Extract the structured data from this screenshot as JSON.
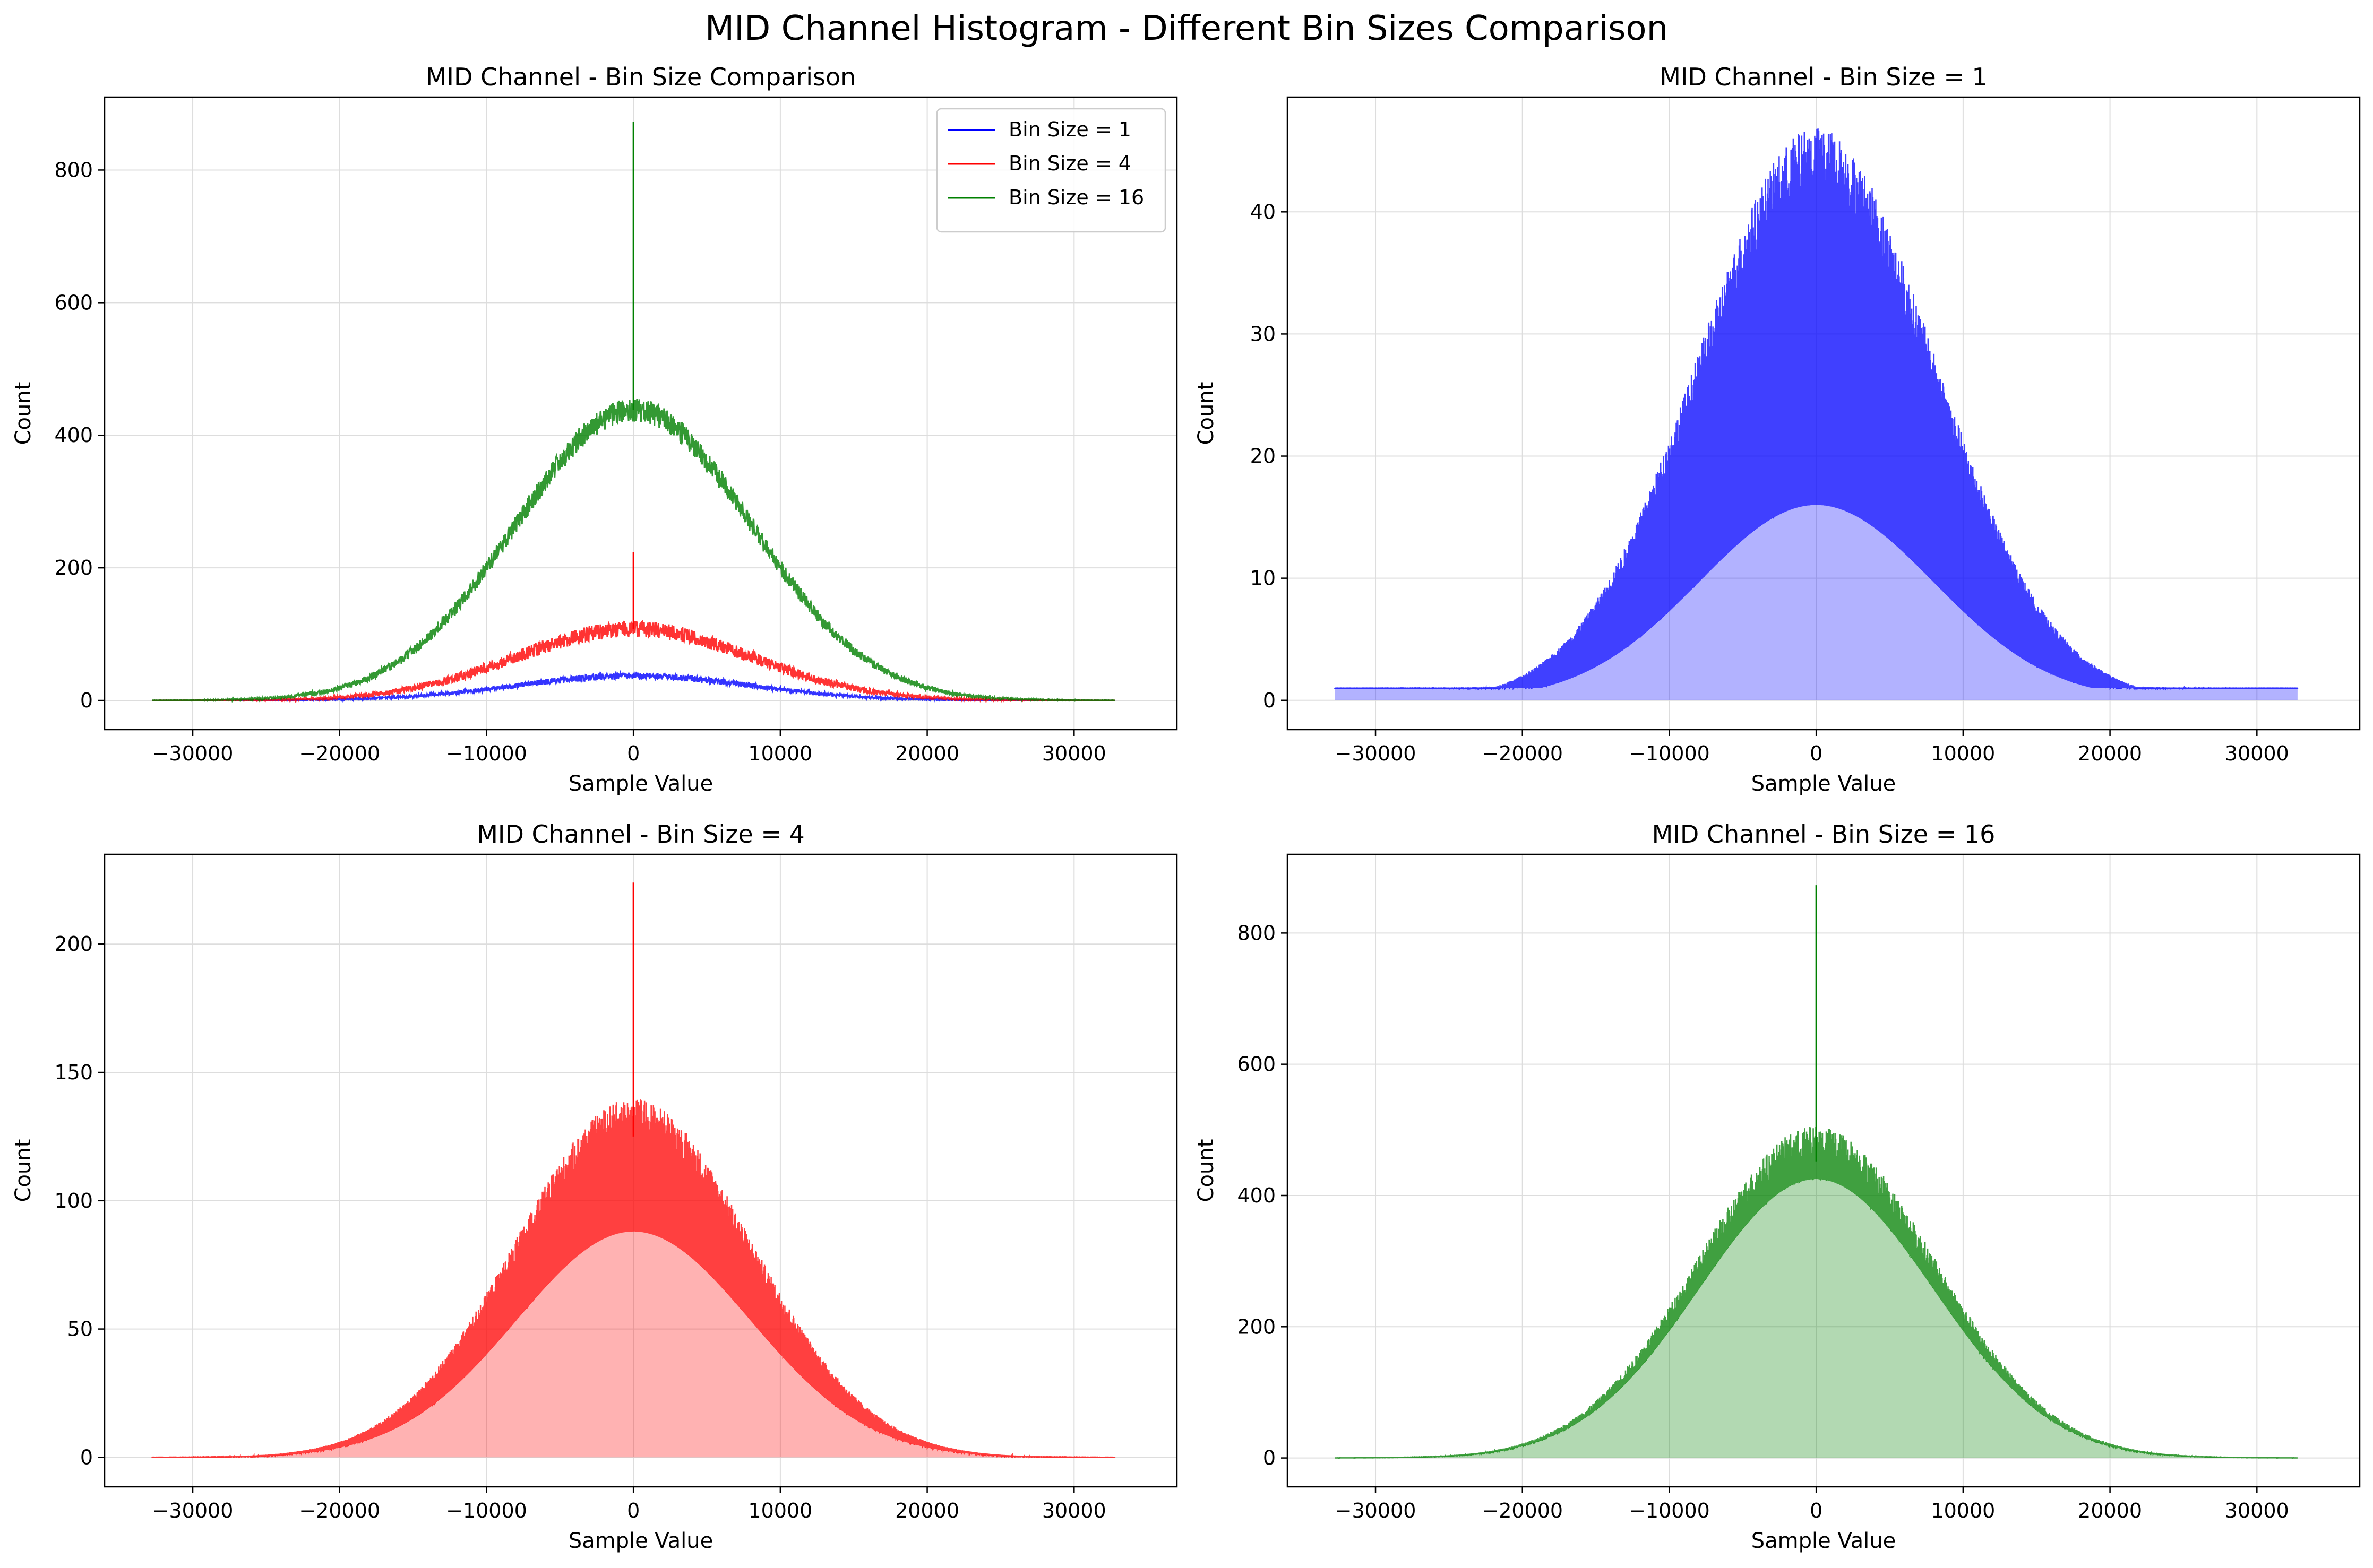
{
  "figure": {
    "suptitle": "MID Channel Histogram - Different Bin Sizes Comparison"
  },
  "colors": {
    "blue": "#0000ff",
    "red": "#ff0000",
    "green": "#008000",
    "grid": "#dddddd",
    "axes": "#000000"
  },
  "chart_data": [
    {
      "type": "line",
      "title": "MID Channel - Bin Size Comparison",
      "xlabel": "Sample Value",
      "ylabel": "Count",
      "xlim": [
        -36000,
        37000
      ],
      "ylim": [
        -44,
        910
      ],
      "xticks": [
        -30000,
        -20000,
        -10000,
        0,
        10000,
        20000,
        30000
      ],
      "yticks": [
        0,
        200,
        400,
        600,
        800
      ],
      "grid": true,
      "legend": "top-right",
      "series": [
        {
          "name": "Bin Size = 1",
          "color": "blue",
          "peak": 37,
          "noise": 5,
          "spike": 0
        },
        {
          "name": "Bin Size = 4",
          "color": "red",
          "peak": 108,
          "noise": 12,
          "spike": 224
        },
        {
          "name": "Bin Size = 16",
          "color": "green",
          "peak": 438,
          "noise": 18,
          "spike": 873
        }
      ],
      "distribution": {
        "shape": "gaussian",
        "center": 0,
        "sigma": 8000,
        "x_min": -32768,
        "x_max": 32767
      }
    },
    {
      "type": "area",
      "title": "MID Channel - Bin Size = 1",
      "xlabel": "Sample Value",
      "ylabel": "Count",
      "xlim": [
        -36000,
        37000
      ],
      "ylim": [
        -2.4,
        49.4
      ],
      "xticks": [
        -30000,
        -20000,
        -10000,
        0,
        10000,
        20000,
        30000
      ],
      "yticks": [
        0,
        10,
        20,
        30,
        40
      ],
      "grid": true,
      "series": [
        {
          "color": "blue",
          "upper_envelope_peak": 41,
          "lower_envelope_peak": 16,
          "max": 47,
          "floor": 1
        }
      ],
      "distribution": {
        "shape": "gaussian",
        "center": 0,
        "sigma": 8000,
        "x_min": -32768,
        "x_max": 32767
      }
    },
    {
      "type": "area",
      "title": "MID Channel - Bin Size = 4",
      "xlabel": "Sample Value",
      "ylabel": "Count",
      "xlim": [
        -36000,
        37000
      ],
      "ylim": [
        -11.5,
        235
      ],
      "xticks": [
        -30000,
        -20000,
        -10000,
        0,
        10000,
        20000,
        30000
      ],
      "yticks": [
        0,
        50,
        100,
        150,
        200
      ],
      "grid": true,
      "series": [
        {
          "color": "red",
          "upper_envelope_peak": 125,
          "lower_envelope_peak": 88,
          "spike": 224
        }
      ],
      "distribution": {
        "shape": "gaussian",
        "center": 0,
        "sigma": 8000,
        "x_min": -32768,
        "x_max": 32767
      }
    },
    {
      "type": "area",
      "title": "MID Channel - Bin Size = 16",
      "xlabel": "Sample Value",
      "ylabel": "Count",
      "xlim": [
        -36000,
        37000
      ],
      "ylim": [
        -44,
        920
      ],
      "xticks": [
        -30000,
        -20000,
        -10000,
        0,
        10000,
        20000,
        30000
      ],
      "yticks": [
        0,
        200,
        400,
        600,
        800
      ],
      "grid": true,
      "series": [
        {
          "color": "green",
          "upper_envelope_peak": 452,
          "lower_envelope_peak": 425,
          "spike": 873
        }
      ],
      "distribution": {
        "shape": "gaussian",
        "center": 0,
        "sigma": 8000,
        "x_min": -32768,
        "x_max": 32767
      }
    }
  ]
}
